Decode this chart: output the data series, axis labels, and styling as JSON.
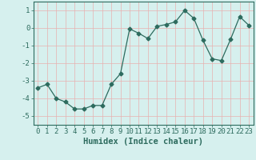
{
  "x": [
    0,
    1,
    2,
    3,
    4,
    5,
    6,
    7,
    8,
    9,
    10,
    11,
    12,
    13,
    14,
    15,
    16,
    17,
    18,
    19,
    20,
    21,
    22,
    23
  ],
  "y": [
    -3.4,
    -3.2,
    -4.0,
    -4.2,
    -4.6,
    -4.6,
    -4.4,
    -4.4,
    -3.2,
    -2.6,
    -0.05,
    -0.3,
    -0.6,
    0.1,
    0.2,
    0.35,
    1.0,
    0.55,
    -0.7,
    -1.75,
    -1.85,
    -0.65,
    0.65,
    0.15
  ],
  "line_color": "#2d6b5e",
  "marker": "D",
  "markersize": 2.5,
  "linewidth": 0.9,
  "xlabel": "Humidex (Indice chaleur)",
  "xlim": [
    -0.5,
    23.5
  ],
  "ylim": [
    -5.5,
    1.5
  ],
  "yticks": [
    1,
    0,
    -1,
    -2,
    -3,
    -4,
    -5
  ],
  "xticks": [
    0,
    1,
    2,
    3,
    4,
    5,
    6,
    7,
    8,
    9,
    10,
    11,
    12,
    13,
    14,
    15,
    16,
    17,
    18,
    19,
    20,
    21,
    22,
    23
  ],
  "xtick_labels": [
    "0",
    "1",
    "2",
    "3",
    "4",
    "5",
    "6",
    "7",
    "8",
    "9",
    "10",
    "11",
    "12",
    "13",
    "14",
    "15",
    "16",
    "17",
    "18",
    "19",
    "20",
    "21",
    "22",
    "23"
  ],
  "grid_color": "#e8b0b0",
  "bg_color": "#d6f0ee",
  "xlabel_fontsize": 7.5,
  "tick_fontsize": 6.5
}
